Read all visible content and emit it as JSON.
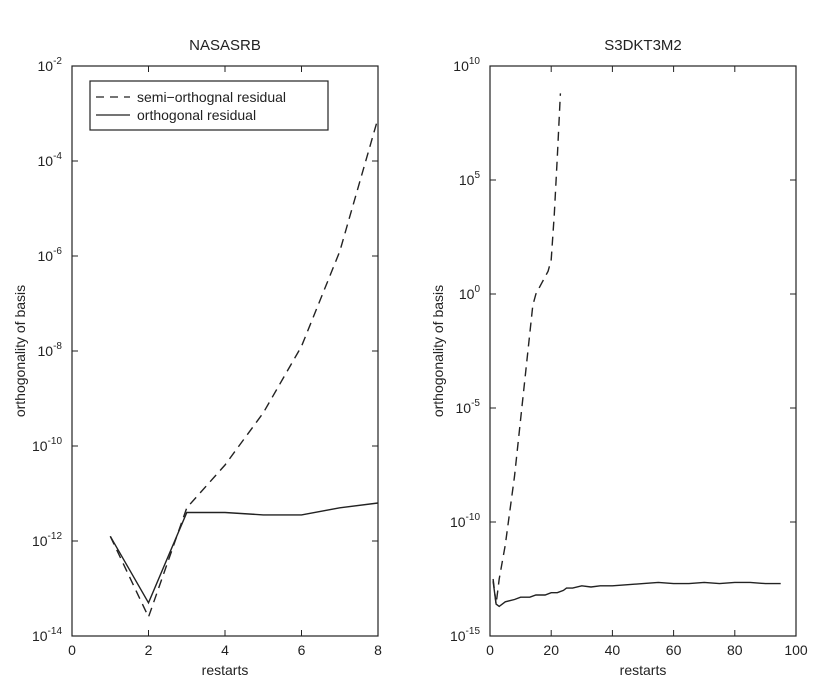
{
  "chart_data": [
    {
      "type": "line",
      "title": "NASASRB",
      "xlabel": "restarts",
      "ylabel": "orthogonality of basis",
      "xlim": [
        0,
        8
      ],
      "ylim_exp": [
        -14,
        -2
      ],
      "yscale": "log",
      "xticks": [
        0,
        2,
        4,
        6,
        8
      ],
      "yticks_exp": [
        -14,
        -12,
        -10,
        -8,
        -6,
        -4,
        -2
      ],
      "grid": false,
      "legend": {
        "placement": "top-left",
        "entries": [
          "semi−orthognal residual",
          "orthogonal residual"
        ]
      },
      "series": [
        {
          "name": "semi−orthognal residual",
          "style": "dashed",
          "x": [
            1,
            2,
            3,
            4,
            5,
            6,
            7,
            8
          ],
          "log10_y": [
            -11.9,
            -13.6,
            -11.3,
            -10.4,
            -9.3,
            -7.9,
            -5.9,
            -3.1
          ]
        },
        {
          "name": "orthogonal residual",
          "style": "solid",
          "x": [
            1,
            2,
            3,
            4,
            5,
            6,
            7,
            8
          ],
          "log10_y": [
            -11.9,
            -13.3,
            -11.4,
            -11.4,
            -11.45,
            -11.45,
            -11.3,
            -11.2
          ]
        }
      ]
    },
    {
      "type": "line",
      "title": "S3DKT3M2",
      "xlabel": "restarts",
      "ylabel": "orthogonality of basis",
      "xlim": [
        0,
        100
      ],
      "ylim_exp": [
        -15,
        10
      ],
      "yscale": "log",
      "xticks": [
        0,
        20,
        40,
        60,
        80,
        100
      ],
      "yticks_exp": [
        -15,
        -10,
        -5,
        0,
        5,
        10
      ],
      "grid": false,
      "series": [
        {
          "style": "dashed",
          "x": [
            1,
            2,
            3,
            5,
            8,
            10,
            12,
            14,
            15,
            17,
            19,
            20,
            21,
            22,
            23
          ],
          "log10_y": [
            -12.5,
            -13.6,
            -12.5,
            -11.0,
            -8.0,
            -5.5,
            -3.0,
            -0.5,
            0.0,
            0.5,
            1.0,
            1.5,
            3.5,
            6.0,
            8.8
          ]
        },
        {
          "style": "solid",
          "x": [
            1,
            2,
            3,
            5,
            8,
            10,
            13,
            15,
            18,
            20,
            22,
            24,
            25,
            27,
            30,
            33,
            36,
            40,
            45,
            50,
            55,
            60,
            65,
            70,
            75,
            80,
            85,
            90,
            95
          ],
          "log10_y": [
            -12.6,
            -13.6,
            -13.7,
            -13.5,
            -13.4,
            -13.3,
            -13.3,
            -13.2,
            -13.2,
            -13.1,
            -13.1,
            -13.0,
            -12.9,
            -12.9,
            -12.8,
            -12.85,
            -12.8,
            -12.8,
            -12.75,
            -12.7,
            -12.65,
            -12.7,
            -12.7,
            -12.65,
            -12.7,
            -12.65,
            -12.65,
            -12.7,
            -12.7
          ]
        }
      ]
    }
  ]
}
